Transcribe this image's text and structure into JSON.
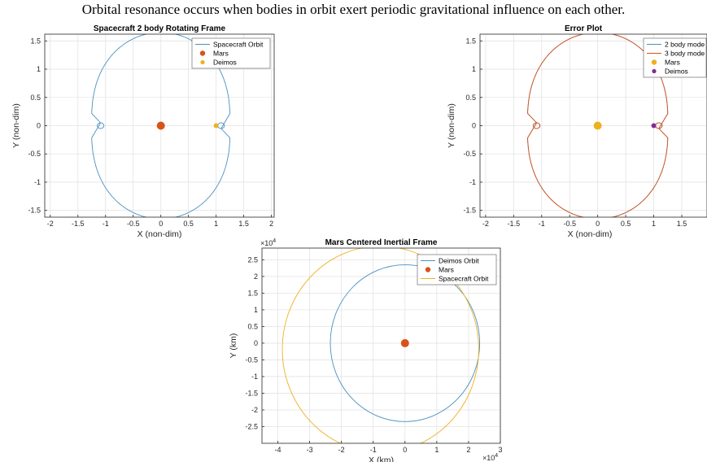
{
  "caption": "Orbital resonance occurs when bodies in orbit exert periodic gravitational influence on each other.",
  "colors": {
    "blue": "#4a90c2",
    "orange": "#d95319",
    "yellow": "#edb120",
    "purple": "#7e2f8e",
    "grid": "#e3e3e3",
    "axis": "#262626"
  },
  "chart_data": [
    {
      "type": "line",
      "title": "Spacecraft 2 body Rotating Frame",
      "xlabel": "X (non-dim)",
      "ylabel": "Y (non-dim)",
      "xlim": [
        -2.1,
        2.05
      ],
      "ylim": [
        -1.62,
        1.62
      ],
      "xticks": [
        -2,
        -1.5,
        -1,
        -0.5,
        0,
        0.5,
        1,
        1.5,
        2
      ],
      "xtick_labels": [
        "-2",
        "-1.5",
        "-1",
        "-0.5",
        "0",
        "0.5",
        "1",
        "1.5",
        "2"
      ],
      "yticks": [
        -1.5,
        -1,
        -0.5,
        0,
        0.5,
        1,
        1.5
      ],
      "ytick_labels": [
        "-1.5",
        "-1",
        "-0.5",
        "0",
        "0.5",
        "1",
        "1.5"
      ],
      "grid": true,
      "legend_position": "top-right",
      "series": [
        {
          "name": "Spacecraft Orbit",
          "kind": "line",
          "color": "#4a90c2",
          "curve": "rotating"
        },
        {
          "name": "Mars",
          "kind": "marker",
          "color": "#d95319",
          "x": 0,
          "y": 0,
          "size": "large"
        },
        {
          "name": "Deimos",
          "kind": "marker",
          "color": "#edb120",
          "x": 1,
          "y": 0,
          "size": "small"
        }
      ]
    },
    {
      "type": "line",
      "title": "Error Plot",
      "xlabel": "X (non-dim)",
      "ylabel": "Y (non-dim)",
      "xlim": [
        -2.1,
        1.95
      ],
      "ylim": [
        -1.62,
        1.62
      ],
      "xticks": [
        -2,
        -1.5,
        -1,
        -0.5,
        0,
        0.5,
        1,
        1.5
      ],
      "xtick_labels": [
        "-2",
        "-1.5",
        "-1",
        "-0.5",
        "0",
        "0.5",
        "1",
        "1.5"
      ],
      "yticks": [
        -1.5,
        -1,
        -0.5,
        0,
        0.5,
        1,
        1.5
      ],
      "ytick_labels": [
        "-1.5",
        "-1",
        "-0.5",
        "0",
        "0.5",
        "1",
        "1.5"
      ],
      "grid": true,
      "legend_position": "top-right",
      "series": [
        {
          "name": "2 body mode",
          "kind": "line",
          "color": "#4a90c2",
          "curve": "rotating"
        },
        {
          "name": "3 body mode",
          "kind": "line",
          "color": "#d95319",
          "curve": "rotating"
        },
        {
          "name": "Mars",
          "kind": "marker",
          "color": "#edb120",
          "x": 0,
          "y": 0,
          "size": "large"
        },
        {
          "name": "Deimos",
          "kind": "marker",
          "color": "#7e2f8e",
          "x": 1,
          "y": 0,
          "size": "small"
        }
      ]
    },
    {
      "type": "line",
      "title": "Mars Centered Inertial Frame",
      "xlabel": "X (km)",
      "ylabel": "Y (km)",
      "xlim": [
        -4.5,
        3.0
      ],
      "ylim": [
        -3.0,
        2.85
      ],
      "xticks": [
        -4,
        -3,
        -2,
        -1,
        0,
        1,
        2,
        3
      ],
      "xtick_labels": [
        "-4",
        "-3",
        "-2",
        "-1",
        "0",
        "1",
        "2",
        "3"
      ],
      "yticks": [
        -2.5,
        -2,
        -1.5,
        -1,
        -0.5,
        0,
        0.5,
        1,
        1.5,
        2,
        2.5
      ],
      "ytick_labels": [
        "-2.5",
        "-2",
        "-1.5",
        "-1",
        "-0.5",
        "0",
        "0.5",
        "1",
        "1.5",
        "2",
        "2.5"
      ],
      "x_multiplier": "×10",
      "x_exponent": "4",
      "y_multiplier": "×10",
      "y_exponent": "4",
      "grid": true,
      "legend_position": "top-right",
      "series": [
        {
          "name": "Deimos Orbit",
          "kind": "circle",
          "color": "#4a90c2",
          "cx": 0,
          "cy": 0,
          "r": 2.35
        },
        {
          "name": "Mars",
          "kind": "marker",
          "color": "#d95319",
          "x": 0,
          "y": 0,
          "size": "large"
        },
        {
          "name": "Spacecraft Orbit",
          "kind": "circle",
          "color": "#edb120",
          "cx": -0.77,
          "cy": -0.18,
          "r": 3.09
        }
      ]
    }
  ]
}
